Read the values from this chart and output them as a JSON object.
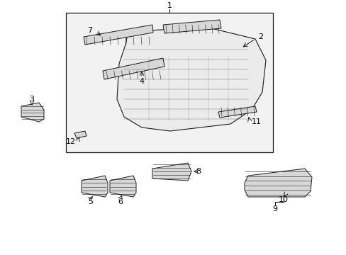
{
  "bg_color": "#ffffff",
  "lc": "#1a1a1a",
  "fc_light": "#ebebeb",
  "fc_mid": "#d8d8d8",
  "fig_width": 4.89,
  "fig_height": 3.6,
  "dpi": 100
}
